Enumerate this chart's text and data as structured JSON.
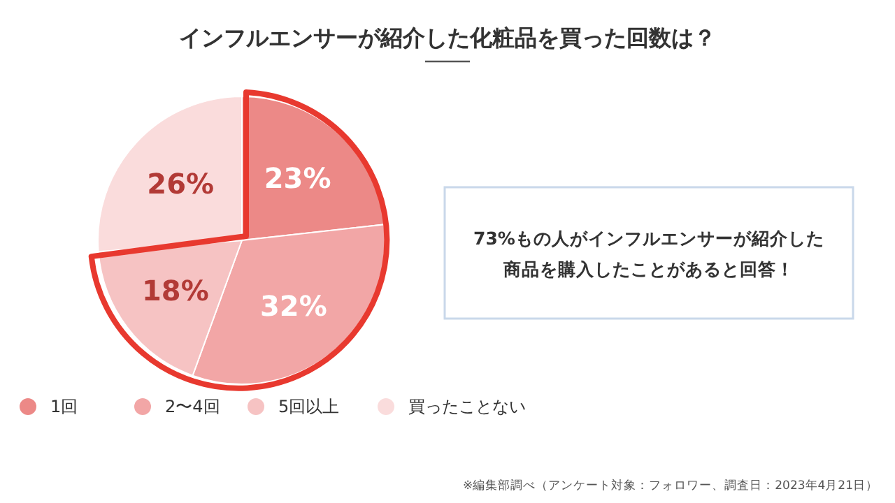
{
  "chart_data": {
    "type": "pie",
    "title": "インフルエンサーが紹介した化粧品を買った回数は？",
    "categories": [
      "1回",
      "2〜4回",
      "5回以上",
      "買ったことない"
    ],
    "values": [
      23,
      32,
      18,
      26
    ],
    "colors": [
      "#ec8987",
      "#f2a6a6",
      "#f6c3c3",
      "#fadcdc"
    ],
    "value_labels": [
      "23%",
      "32%",
      "18%",
      "26%"
    ],
    "legend": "bottom",
    "annotations": [
      "73%もの人がインフルエンサーが紹介した商品を購入したことがあると回答！",
      "※編集部調べ（アンケート対象：フォロワー、調査日：2023年4月21日）"
    ]
  }
}
